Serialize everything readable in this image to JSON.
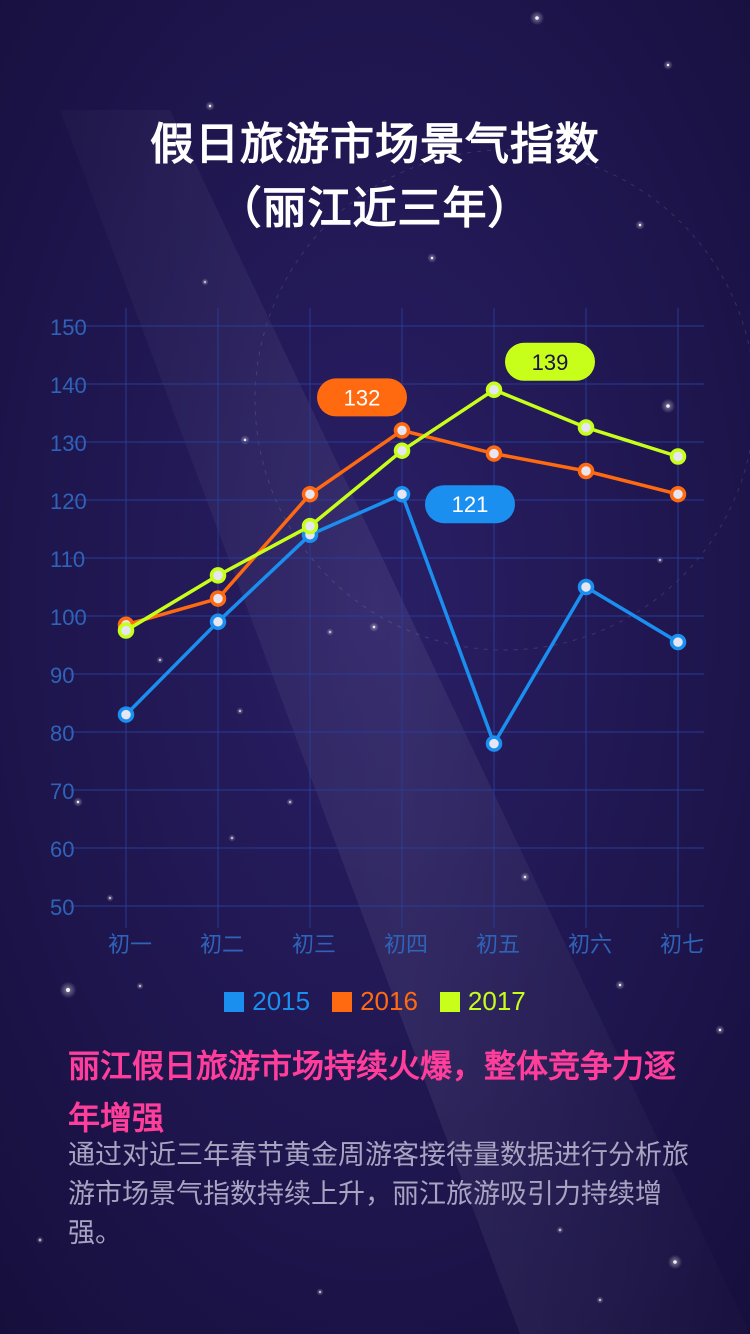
{
  "title_line1": "假日旅游市场景气指数",
  "title_line2": "（丽江近三年）",
  "chart_data": {
    "type": "line",
    "title": "假日旅游市场景气指数（丽江近三年）",
    "categories": [
      "初一",
      "初二",
      "初三",
      "初四",
      "初五",
      "初六",
      "初七"
    ],
    "yticks": [
      "150",
      "140",
      "130",
      "120",
      "110",
      "100",
      "90",
      "80",
      "70",
      "60",
      "50"
    ],
    "ylim": [
      50,
      150
    ],
    "grid": true,
    "legend_position": "bottom",
    "series": [
      {
        "name": "2015",
        "color": "#1a8ff0",
        "values": [
          83,
          99,
          114,
          121,
          78,
          105,
          95.5
        ]
      },
      {
        "name": "2016",
        "color": "#ff6a10",
        "values": [
          98.5,
          103,
          121,
          132,
          128,
          125,
          121
        ]
      },
      {
        "name": "2017",
        "color": "#c8ff1a",
        "values": [
          97.5,
          107,
          115.5,
          128.5,
          139,
          132.5,
          127.5
        ]
      }
    ],
    "annotations": [
      {
        "series": 1,
        "index": 3,
        "text": "132",
        "fill": "#ff6a10",
        "textColor": "#ffffff"
      },
      {
        "series": 0,
        "index": 3,
        "text": "121",
        "fill": "#1a8ff0",
        "textColor": "#ffffff"
      },
      {
        "series": 2,
        "index": 4,
        "text": "139",
        "fill": "#c8ff1a",
        "textColor": "#1a1240"
      }
    ],
    "colors": {
      "axis_text": "#2f63b8",
      "grid": "#2a3f9a"
    }
  },
  "headline": "丽江假日旅游市场持续火爆，整体竞争力逐年增强",
  "body": "通过对近三年春节黄金周游客接待量数据进行分析旅游市场景气指数持续上升，丽江旅游吸引力持续增强。"
}
